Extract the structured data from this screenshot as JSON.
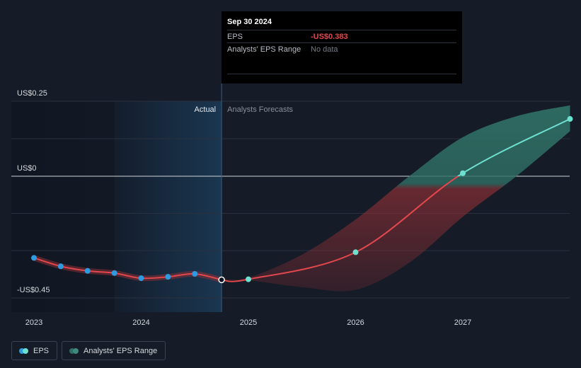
{
  "tooltip": {
    "date": "Sep 30 2024",
    "eps_label": "EPS",
    "eps_value": "-US$0.383",
    "range_label": "Analysts' EPS Range",
    "range_value": "No data"
  },
  "legend": {
    "eps_label": "EPS",
    "range_label": "Analysts' EPS Range"
  },
  "colors": {
    "background": "#151b27",
    "actual_line": "#e2474d",
    "actual_dot": "#2f9ae0",
    "forecast_negative": "#e2474d",
    "forecast_positive": "#6de0cf",
    "range_negative": "#8a2f35",
    "range_positive": "#2f6e64",
    "highlight_band": "#1b3b58"
  },
  "chart_data": {
    "type": "line",
    "y_labels": [
      "US$0.25",
      "US$0",
      "-US$0.45"
    ],
    "x_ticks": [
      "2023",
      "2024",
      "2025",
      "2026",
      "2027"
    ],
    "xlim": [
      2022.85,
      2028.0
    ],
    "ylim": [
      -0.45,
      0.25
    ],
    "grid": true,
    "section_labels": {
      "actual": "Actual",
      "forecast": "Analysts Forecasts"
    },
    "highlight_start": 2023.75,
    "divider_x": 2024.75,
    "series": [
      {
        "name": "EPS",
        "kind": "actual",
        "points": [
          [
            2023.0,
            -0.302
          ],
          [
            2023.25,
            -0.333
          ],
          [
            2023.5,
            -0.35
          ],
          [
            2023.75,
            -0.358
          ],
          [
            2024.0,
            -0.377
          ],
          [
            2024.25,
            -0.372
          ],
          [
            2024.5,
            -0.361
          ],
          [
            2024.75,
            -0.383
          ]
        ]
      },
      {
        "name": "EPS",
        "kind": "forecast",
        "points": [
          [
            2024.75,
            -0.383
          ],
          [
            2025.0,
            -0.381
          ],
          [
            2026.0,
            -0.281
          ],
          [
            2027.0,
            0.01
          ],
          [
            2028.0,
            0.191
          ]
        ]
      }
    ],
    "range": {
      "x": [
        2024.75,
        2025.0,
        2025.5,
        2026.0,
        2026.5,
        2027.0,
        2027.5,
        2028.0
      ],
      "upper": [
        -0.383,
        -0.375,
        -0.29,
        -0.16,
        0.0,
        0.13,
        0.2,
        0.236
      ],
      "lower": [
        -0.383,
        -0.385,
        -0.41,
        -0.42,
        -0.32,
        -0.15,
        0.0,
        0.15
      ]
    }
  }
}
